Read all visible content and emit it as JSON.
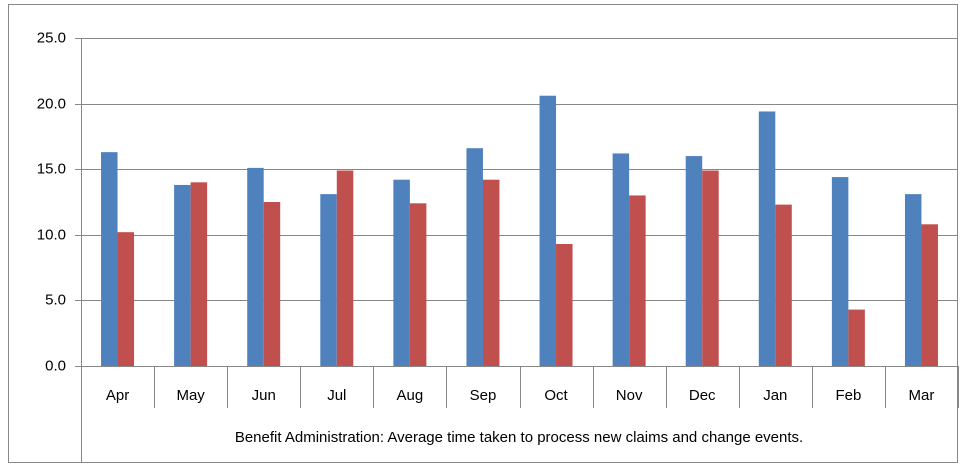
{
  "chart_data": {
    "type": "bar",
    "x_label": "Benefit Administration: Average time taken to process new claims and change events.",
    "categories": [
      "Apr",
      "May",
      "Jun",
      "Jul",
      "Aug",
      "Sep",
      "Oct",
      "Nov",
      "Dec",
      "Jan",
      "Feb",
      "Mar"
    ],
    "series": [
      {
        "color": "#4f81bd",
        "values": [
          16.3,
          13.8,
          15.1,
          13.1,
          14.2,
          16.6,
          20.6,
          16.2,
          16.0,
          19.4,
          14.4,
          13.1
        ]
      },
      {
        "color": "#c0504d",
        "values": [
          10.2,
          14.0,
          12.5,
          14.9,
          12.4,
          14.2,
          9.3,
          13.0,
          14.9,
          12.3,
          4.3,
          10.8
        ]
      }
    ],
    "ylim": [
      0,
      25
    ],
    "yticks": [
      {
        "value": 0,
        "label": "0.0"
      },
      {
        "value": 5,
        "label": "5.0"
      },
      {
        "value": 10,
        "label": "10.0"
      },
      {
        "value": 15,
        "label": "15.0"
      },
      {
        "value": 20,
        "label": "20.0"
      },
      {
        "value": 25,
        "label": "25.0"
      }
    ],
    "grid": true
  }
}
